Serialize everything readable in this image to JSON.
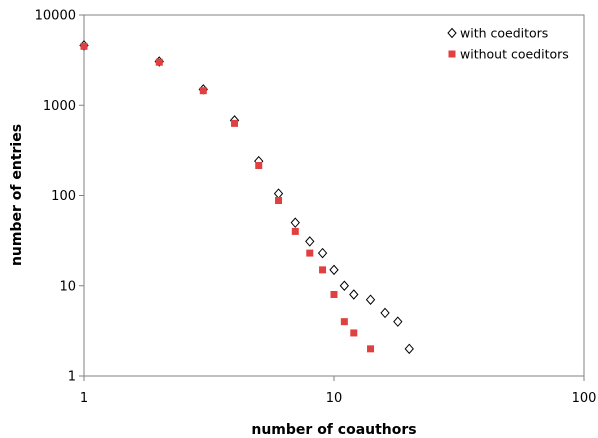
{
  "chart_data": {
    "type": "scatter",
    "title": "",
    "xlabel": "number of coauthors",
    "ylabel": "number of entries",
    "xscale": "log",
    "yscale": "log",
    "xlim": [
      1,
      100
    ],
    "ylim": [
      1,
      10000
    ],
    "xticks": [
      1,
      10,
      100
    ],
    "xtick_labels": [
      "1",
      "10",
      "100"
    ],
    "yticks": [
      1,
      10,
      100,
      1000,
      10000
    ],
    "ytick_labels": [
      "1",
      "10",
      "100",
      "1000",
      "10000"
    ],
    "grid": false,
    "legend_position": "top-right",
    "series": [
      {
        "name": "with coeditors",
        "marker": "diamond-open",
        "color": "#000000",
        "x": [
          1,
          2,
          3,
          4,
          5,
          6,
          7,
          8,
          9,
          10,
          11,
          12,
          14,
          16,
          18,
          20
        ],
        "y": [
          4600,
          3050,
          1500,
          680,
          240,
          105,
          50,
          31,
          23,
          15,
          10,
          8,
          7,
          5,
          4,
          2
        ]
      },
      {
        "name": "without coeditors",
        "marker": "square",
        "color": "#e04040",
        "x": [
          1,
          2,
          3,
          4,
          5,
          6,
          7,
          8,
          9,
          10,
          11,
          12,
          14
        ],
        "y": [
          4500,
          3000,
          1450,
          630,
          215,
          88,
          40,
          23,
          15,
          8,
          4,
          3,
          2
        ]
      }
    ]
  }
}
